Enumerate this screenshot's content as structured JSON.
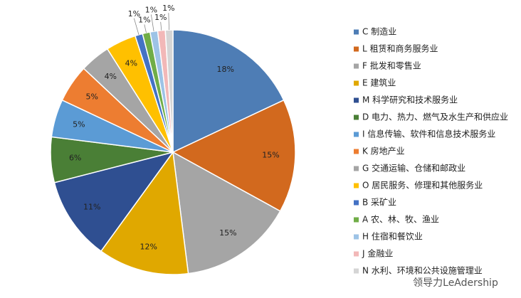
{
  "chart_data": {
    "type": "pie",
    "categories": [
      "C 制造业",
      "L 租赁和商务服务业",
      "F 批发和零售业",
      "E 建筑业",
      "M 科学研究和技术服务业",
      "D 电力、热力、燃气及水生产和供应业",
      "I 信息传输、软件和信息技术服务业",
      "K 房地产业",
      "G 交通运输、仓储和邮政业",
      "O 居民服务、修理和其他服务业",
      "B 采矿业",
      "A 农、林、牧、渔业",
      "H 住宿和餐饮业",
      "J 金融业",
      "N 水利、环境和公共设施管理业"
    ],
    "values": [
      18,
      15,
      15,
      12,
      11,
      6,
      5,
      5,
      4,
      4,
      1,
      1,
      1,
      1,
      1
    ],
    "value_labels": [
      "18%",
      "15%",
      "15%",
      "12%",
      "11%",
      "6%",
      "5%",
      "5%",
      "4%",
      "4%",
      "1%",
      "1%",
      "1%",
      "1%",
      "1%"
    ],
    "colors": [
      "#4e7db5",
      "#d2691e",
      "#a5a5a5",
      "#e0a800",
      "#2f4f91",
      "#4a7f36",
      "#5b9bd5",
      "#ed7d31",
      "#a5a5a5",
      "#ffc000",
      "#4472c4",
      "#70ad47",
      "#9dc3e6",
      "#f2b8b8",
      "#d5d5d5"
    ],
    "legend": "right"
  },
  "watermark": "领导力LeAdership"
}
